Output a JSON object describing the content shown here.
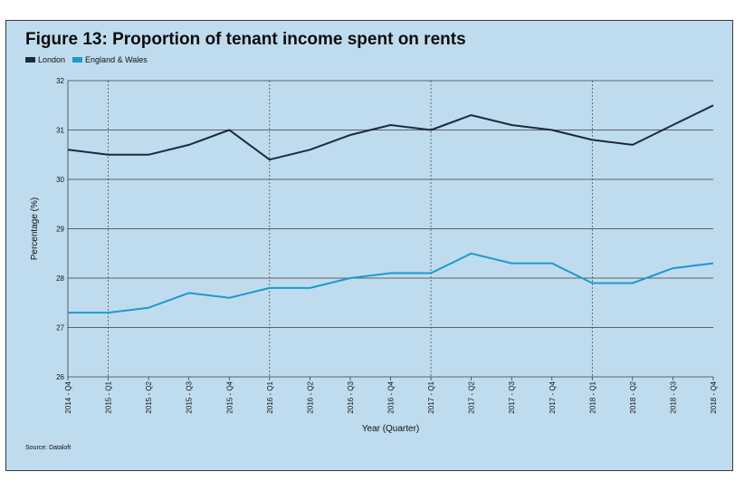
{
  "colors": {
    "background": "#bfdcee",
    "london": "#1c2a3e",
    "england_wales": "#1a9ad0",
    "gridline": "#3d3d3d"
  },
  "chart_data": {
    "type": "line",
    "title": "Figure 13: Proportion of tenant income spent on rents",
    "xlabel": "Year (Quarter)",
    "ylabel": "Percentage (%)",
    "ylim": [
      26,
      32
    ],
    "yticks": [
      "26",
      "27",
      "28",
      "29",
      "30",
      "31",
      "32"
    ],
    "grid": "horizontal gridlines at every integer; dashed vertical lines at each Q1",
    "legend_position": "top-left",
    "categories": [
      "2014 - Q4",
      "2015 - Q1",
      "2015 - Q2",
      "2015 - Q3",
      "2015 - Q4",
      "2016 - Q1",
      "2016 - Q2",
      "2016 - Q3",
      "2016 - Q4",
      "2017 - Q1",
      "2017 - Q2",
      "2017 - Q3",
      "2017 - Q4",
      "2018 - Q1",
      "2018 - Q2",
      "2018 - Q3",
      "2018 - Q4"
    ],
    "series": [
      {
        "name": "London",
        "color": "#1c2a3e",
        "values": [
          30.6,
          30.5,
          30.5,
          30.7,
          31.0,
          30.4,
          30.6,
          30.9,
          31.1,
          31.0,
          31.3,
          31.1,
          31.0,
          30.8,
          30.7,
          31.1,
          31.5
        ]
      },
      {
        "name": "England & Wales",
        "color": "#1a9ad0",
        "values": [
          27.3,
          27.3,
          27.4,
          27.7,
          27.6,
          27.8,
          27.8,
          28.0,
          28.1,
          28.1,
          28.5,
          28.3,
          28.3,
          27.9,
          27.9,
          28.2,
          28.3
        ]
      }
    ],
    "source": "Source: Dataloft"
  }
}
